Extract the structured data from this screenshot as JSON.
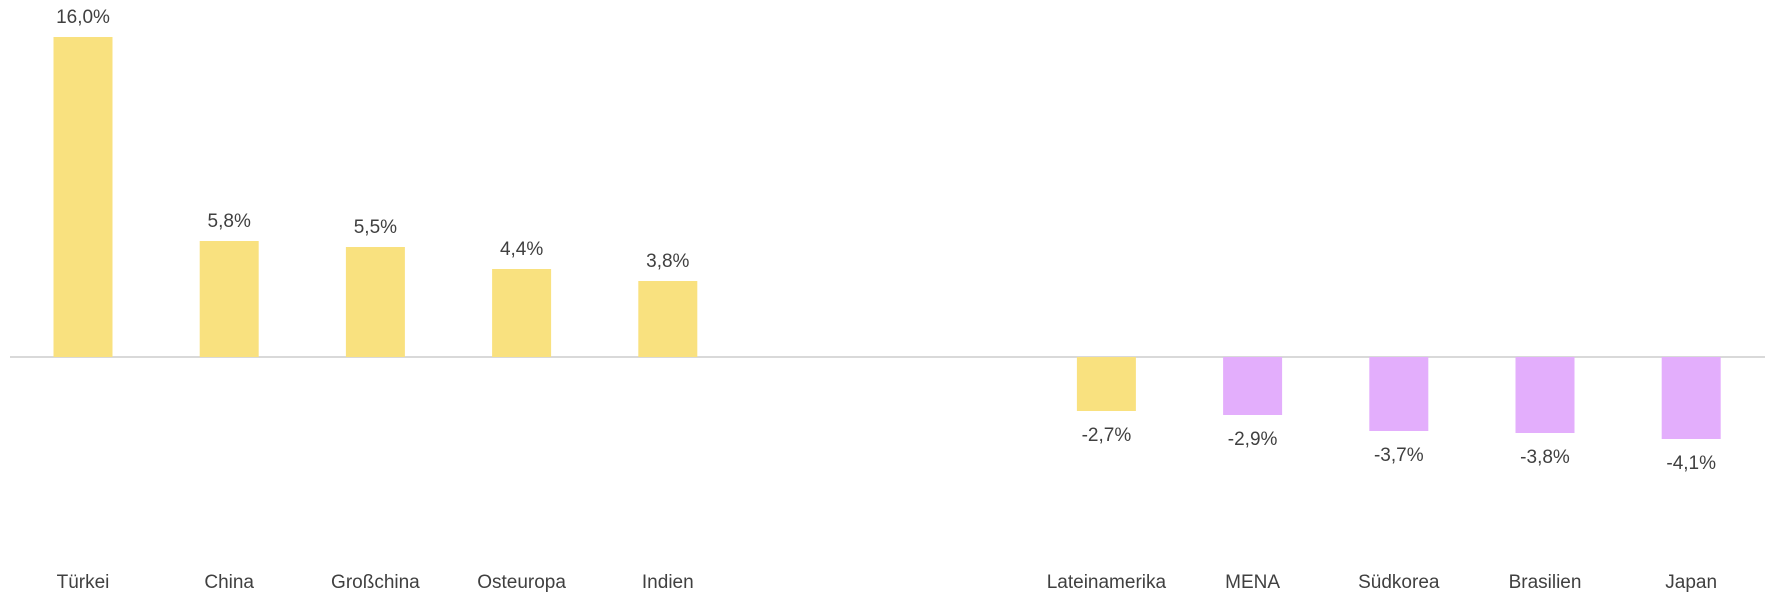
{
  "chart_data": {
    "type": "bar",
    "title": "",
    "xlabel": "",
    "ylabel": "",
    "categories": [
      "Türkei",
      "China",
      "Großchina",
      "Osteuropa",
      "Indien",
      "",
      "",
      "Lateinamerika",
      "MENA",
      "Südkorea",
      "Brasilien",
      "Japan"
    ],
    "values": [
      16.0,
      5.8,
      5.5,
      4.4,
      3.8,
      null,
      null,
      -2.7,
      -2.9,
      -3.7,
      -3.8,
      -4.1
    ],
    "value_labels": [
      "16,0%",
      "5,8%",
      "5,5%",
      "4,4%",
      "3,8%",
      "",
      "",
      "-2,7%",
      "-2,9%",
      "-3,7%",
      "-3,8%",
      "-4,1%"
    ],
    "bar_colors": [
      "#f9e17f",
      "#f9e17f",
      "#f9e17f",
      "#f9e17f",
      "#f9e17f",
      "",
      "",
      "#f9e17f",
      "#e3aefc",
      "#e3aefc",
      "#e3aefc",
      "#e3aefc"
    ],
    "ylim": [
      -4.1,
      16.0
    ],
    "grid": false,
    "legend": "none",
    "axis_color": "#d9d9d9"
  }
}
